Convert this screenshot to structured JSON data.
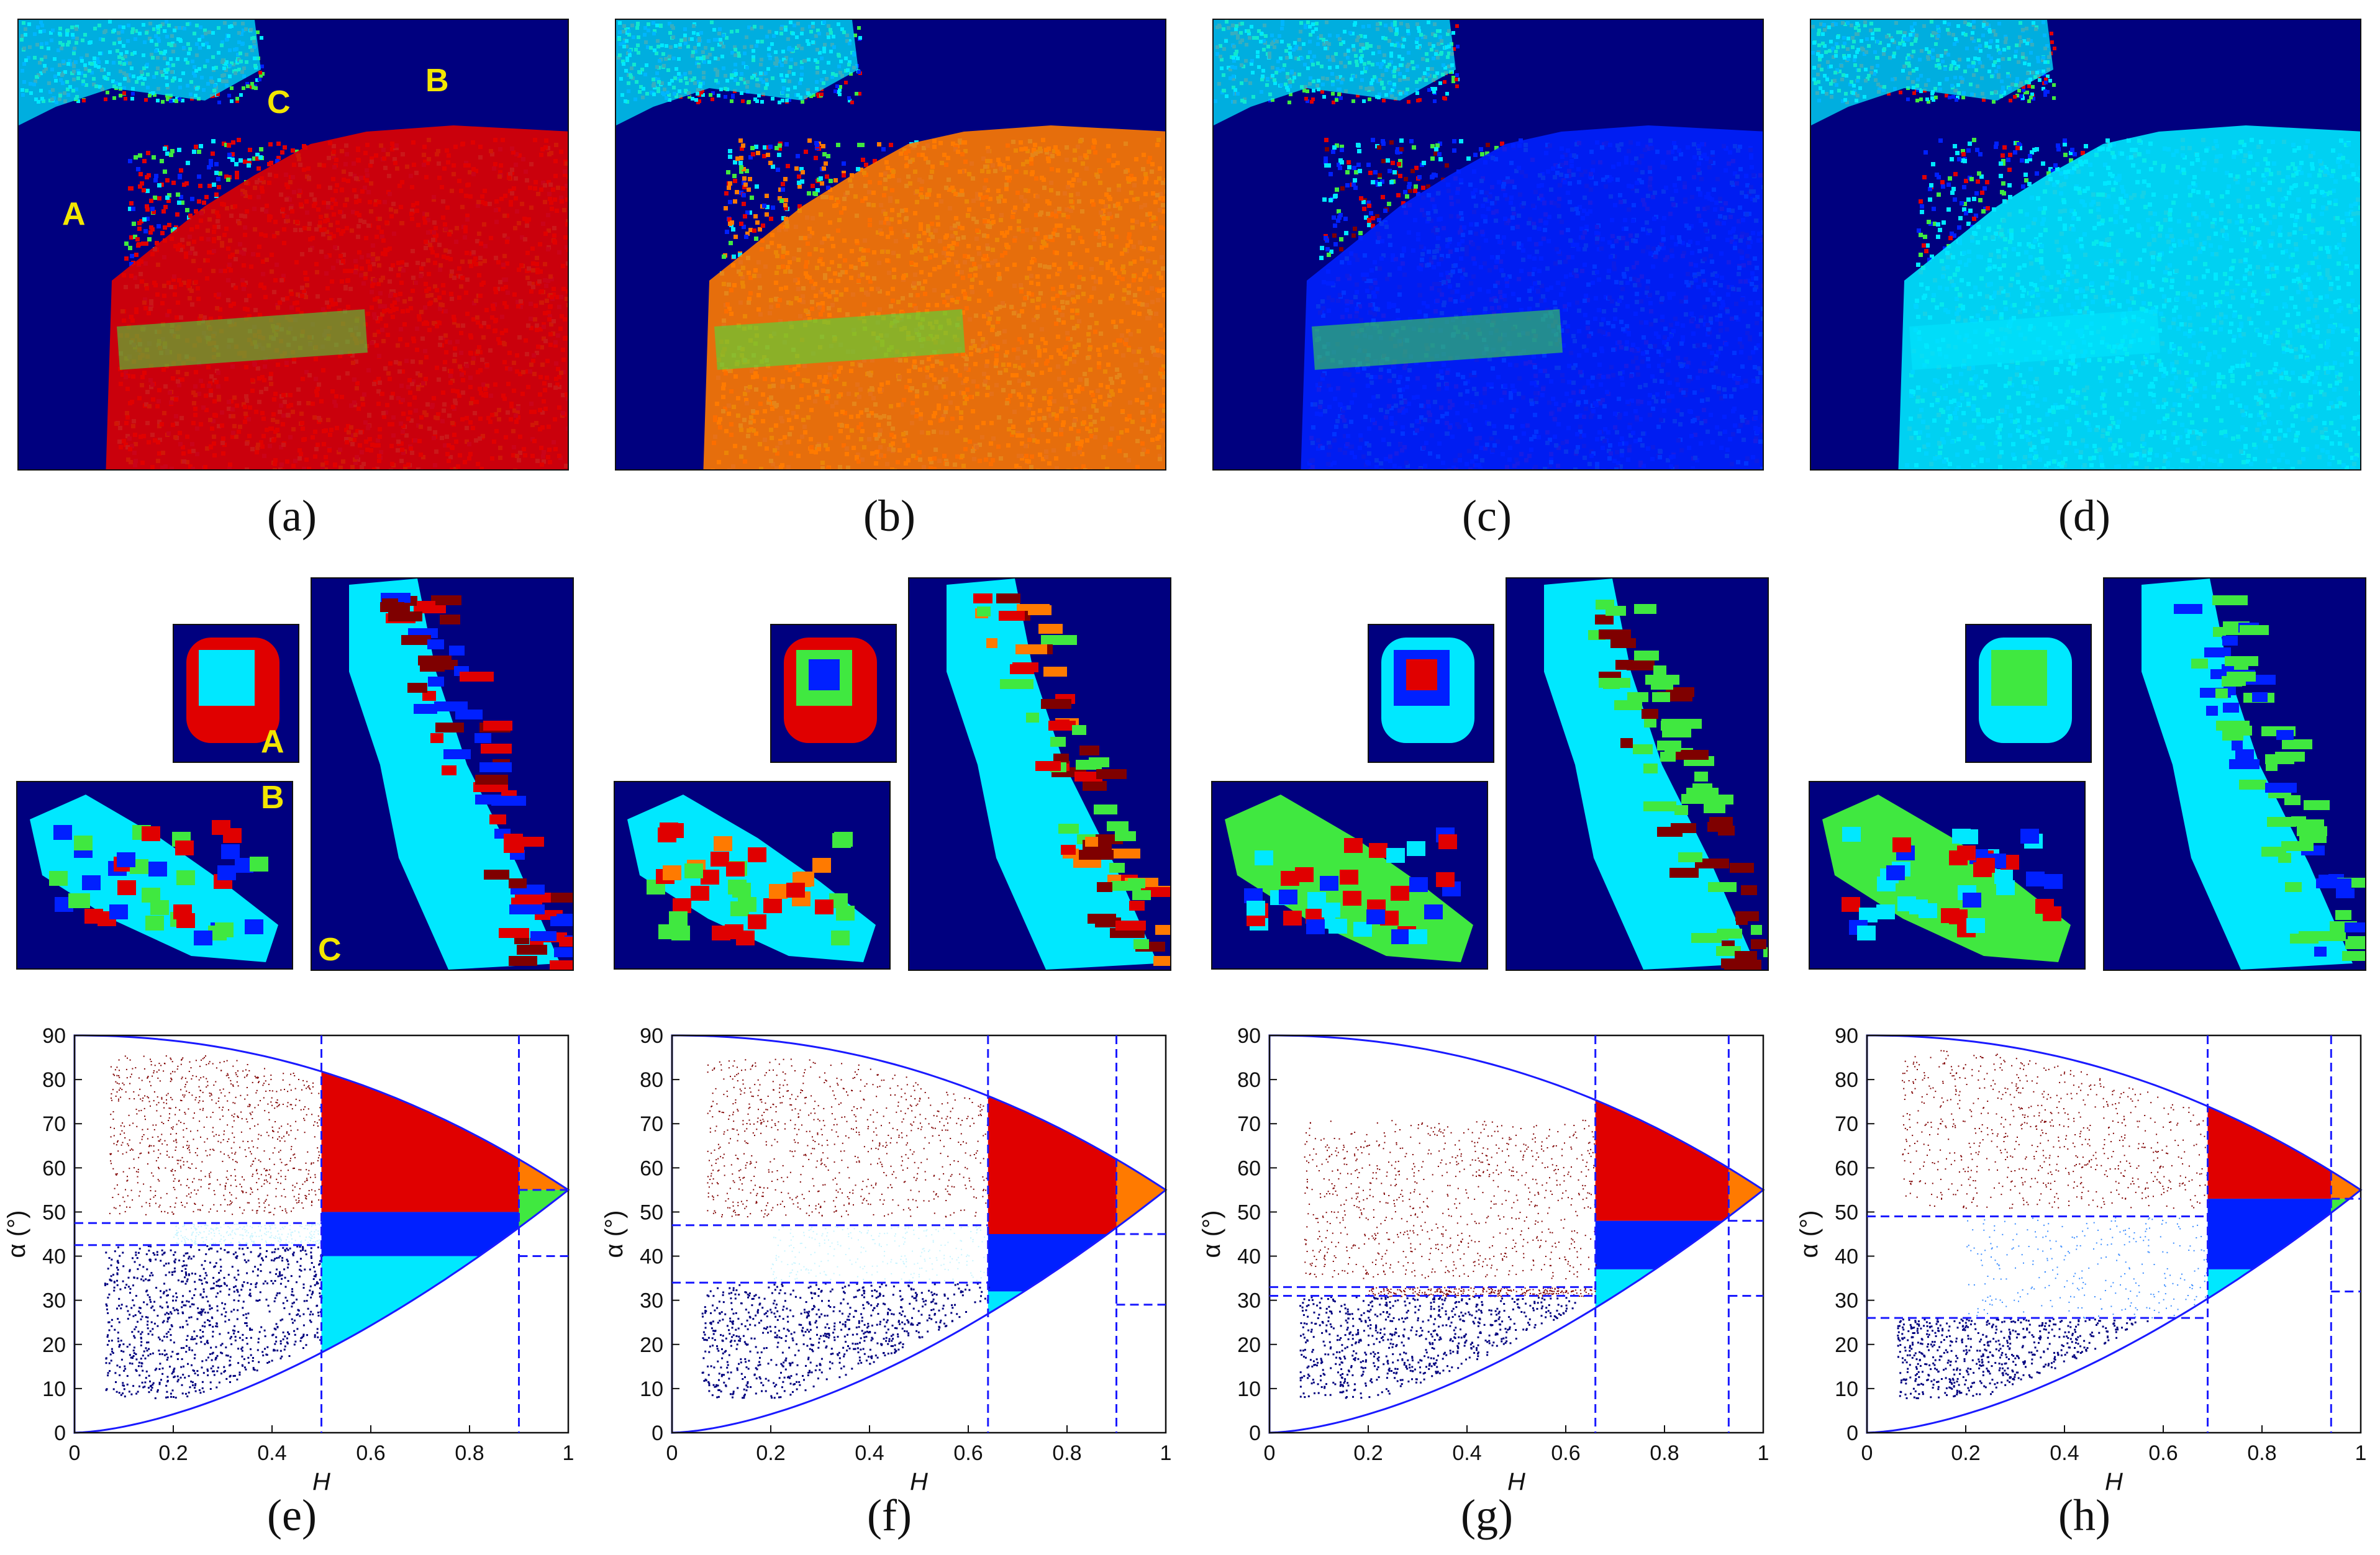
{
  "figure": {
    "colors": {
      "navy": "#00007f",
      "cyan": "#00e8ff",
      "blue": "#0020ff",
      "green": "#40e840",
      "red": "#e00000",
      "darkred": "#7f0000",
      "orange": "#ff7a00",
      "lightblue": "#3a8cff",
      "axis": "#1a1aff"
    },
    "row1_captions": [
      "(a)",
      "(b)",
      "(c)",
      "(d)"
    ],
    "row3_captions": [
      "(e)",
      "(f)",
      "(g)",
      "(h)"
    ],
    "region_labels": {
      "a": "A",
      "b": "B",
      "c": "C"
    },
    "map_styles": [
      "red-dominant",
      "orange-dominant",
      "mixed-blue-red",
      "cyan-blue-dominant"
    ]
  },
  "chart_data": [
    {
      "type": "scatter",
      "panel": "e",
      "xlabel": "H",
      "ylabel": "α (°)",
      "xlim": [
        0,
        1
      ],
      "ylim": [
        0,
        90
      ],
      "xticks": [
        "0",
        "0.2",
        "0.4",
        "0.6",
        "0.8",
        "1"
      ],
      "yticks": [
        "0",
        "10",
        "20",
        "30",
        "40",
        "50",
        "60",
        "70",
        "80",
        "90"
      ],
      "h_thresholds": [
        0.5,
        0.9
      ],
      "alpha_thresholds_left": [
        42.5,
        47.5
      ],
      "alpha_thresholds_mid": [
        40,
        50
      ],
      "alpha_thresholds_right": [
        40,
        55
      ],
      "low_mid_color": "cyan",
      "mid_mid_color": "blue",
      "low_left_color": "navy",
      "mid_left_color": "cyan-tint"
    },
    {
      "type": "scatter",
      "panel": "f",
      "xlabel": "H",
      "ylabel": "α (°)",
      "xlim": [
        0,
        1
      ],
      "ylim": [
        0,
        90
      ],
      "xticks": [
        "0",
        "0.2",
        "0.4",
        "0.6",
        "0.8",
        "1"
      ],
      "yticks": [
        "0",
        "10",
        "20",
        "30",
        "40",
        "50",
        "60",
        "70",
        "80",
        "90"
      ],
      "h_thresholds": [
        0.64,
        0.9
      ],
      "alpha_thresholds_left": [
        34,
        47
      ],
      "alpha_thresholds_mid": [
        32,
        45
      ],
      "alpha_thresholds_right": [
        29,
        45
      ],
      "low_mid_color": "cyan",
      "mid_mid_color": "blue",
      "low_left_color": "navy",
      "mid_left_color": "cyan-tint"
    },
    {
      "type": "scatter",
      "panel": "g",
      "xlabel": "H",
      "ylabel": "α (°)",
      "xlim": [
        0,
        1
      ],
      "ylim": [
        0,
        90
      ],
      "xticks": [
        "0",
        "0.2",
        "0.4",
        "0.6",
        "0.8",
        "1"
      ],
      "yticks": [
        "0",
        "10",
        "20",
        "30",
        "40",
        "50",
        "60",
        "70",
        "80",
        "90"
      ],
      "h_thresholds": [
        0.66,
        0.93
      ],
      "alpha_thresholds_left": [
        31,
        33
      ],
      "alpha_thresholds_mid": [
        37,
        48
      ],
      "alpha_thresholds_right": [
        31,
        48
      ],
      "low_mid_color": "cyan",
      "mid_mid_color": "blue",
      "low_left_color": "navy",
      "mid_left_color": "darkred"
    },
    {
      "type": "scatter",
      "panel": "h",
      "xlabel": "H",
      "ylabel": "α (°)",
      "xlim": [
        0,
        1
      ],
      "ylim": [
        0,
        90
      ],
      "xticks": [
        "0",
        "0.2",
        "0.4",
        "0.6",
        "0.8",
        "1"
      ],
      "yticks": [
        "0",
        "10",
        "20",
        "30",
        "40",
        "50",
        "60",
        "70",
        "80",
        "90"
      ],
      "h_thresholds": [
        0.69,
        0.94
      ],
      "alpha_thresholds_left": [
        26,
        49
      ],
      "alpha_thresholds_mid": [
        37,
        53
      ],
      "alpha_thresholds_right": [
        32,
        53
      ],
      "low_mid_color": "cyan",
      "mid_mid_color": "blue",
      "low_left_color": "navy",
      "mid_left_color": "lightblue"
    }
  ]
}
